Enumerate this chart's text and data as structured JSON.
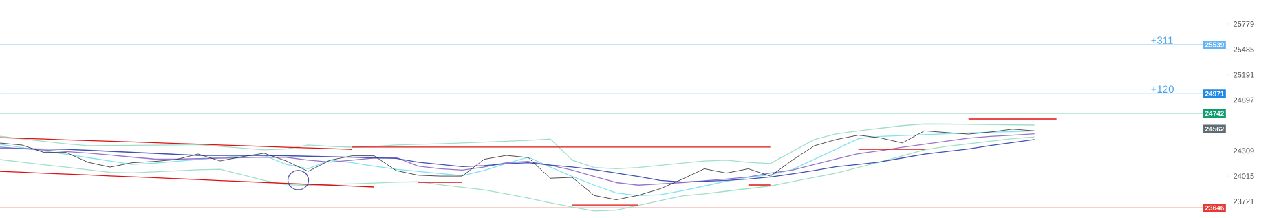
{
  "chart_data": {
    "type": "line",
    "categories": [
      null,
      null,
      null,
      null,
      null,
      null,
      null,
      null,
      null,
      null,
      null,
      null,
      null,
      null,
      null,
      null,
      null,
      null,
      null,
      null,
      null,
      null,
      null,
      null,
      null,
      null,
      null,
      null,
      null,
      null,
      null,
      null,
      null,
      null,
      null,
      null,
      null,
      null,
      null,
      null,
      null,
      null,
      null,
      null,
      null,
      null,
      null,
      null,
      null,
      null,
      null,
      null,
      null,
      null,
      null,
      null
    ],
    "ylim": [
      23529,
      26058
    ],
    "yticks": [
      23721,
      24015,
      24309,
      24897,
      25191,
      25485,
      25779
    ],
    "series": [
      {
        "color": "#9fdfca",
        "values": [
          24478,
          24448,
          24418,
          24389,
          24368,
          24370,
          24372,
          24374,
          24376,
          24380,
          24360,
          24340,
          24320,
          24330,
          24375,
          24360,
          24350,
          24360,
          24375,
          24383,
          24390,
          24400,
          24410,
          24420,
          24430,
          24446,
          24200,
          24115,
          24100,
          24115,
          24140,
          24165,
          24190,
          24200,
          24175,
          24160,
          24300,
          24440,
          24505,
          24540,
          24570,
          24600,
          24620,
          24618,
          24615,
          24612,
          24609,
          24606,
          null,
          null,
          null,
          null,
          null,
          null,
          null,
          null
        ]
      },
      {
        "color": "#9fdfca",
        "values": [
          24207,
          24177,
          24147,
          24118,
          24088,
          24058,
          24053,
          24065,
          24077,
          24088,
          24094,
          24030,
          23965,
          23915,
          23908,
          23920,
          23925,
          23935,
          23945,
          23950,
          23915,
          23885,
          23855,
          23810,
          23760,
          23705,
          23655,
          23610,
          23620,
          23675,
          23730,
          23785,
          23810,
          23840,
          23870,
          23900,
          23950,
          24000,
          24050,
          24115,
          24180,
          24250,
          24320,
          24360,
          24390,
          24420,
          24450,
          24470,
          null,
          null,
          null,
          null,
          null,
          null,
          null,
          null
        ]
      },
      {
        "color": "#7fe3f0",
        "values": [
          24383,
          24345,
          24306,
          24268,
          24229,
          24191,
          24150,
          24164,
          24186,
          24208,
          24230,
          24250,
          24255,
          24150,
          24100,
          24200,
          24170,
          24130,
          24095,
          24070,
          24045,
          24020,
          24080,
          24160,
          24235,
          24120,
          24010,
          23910,
          23820,
          23790,
          23800,
          23845,
          23900,
          23955,
          24000,
          24030,
          24090,
          24210,
          24330,
          24450,
          24475,
          24485,
          24495,
          24505,
          24515,
          24525,
          24530,
          24540,
          null,
          null,
          null,
          null,
          null,
          null,
          null,
          null
        ]
      },
      {
        "color": "#9575cd",
        "values": [
          24351,
          24334,
          24317,
          24300,
          24282,
          24260,
          24235,
          24213,
          24211,
          24217,
          24223,
          24229,
          24235,
          24233,
          24200,
          24178,
          24200,
          24225,
          24230,
          24130,
          24100,
          24085,
          24120,
          24170,
          24185,
          24140,
          24085,
          24010,
          23940,
          23910,
          23925,
          23940,
          23960,
          23980,
          24005,
          24050,
          24085,
          24150,
          24215,
          24275,
          24310,
          24350,
          24385,
          24420,
          24455,
          24475,
          24490,
          24505,
          null,
          null,
          null,
          null,
          null,
          null,
          null,
          null
        ]
      },
      {
        "color": "#3f51b5",
        "values": [
          24335,
          24333,
          24330,
          24326,
          24315,
          24303,
          24291,
          24279,
          24267,
          24255,
          24255,
          24255,
          24255,
          24251,
          24245,
          24239,
          24233,
          24227,
          24220,
          24177,
          24151,
          24125,
          24136,
          24158,
          24170,
          24143,
          24120,
          24090,
          24050,
          24010,
          23965,
          23947,
          23955,
          23965,
          23980,
          24005,
          24040,
          24080,
          24125,
          24150,
          24180,
          24225,
          24270,
          24300,
          24330,
          24370,
          24405,
          24440,
          null,
          null,
          null,
          null,
          null,
          null,
          null,
          null
        ]
      },
      {
        "color": "#222222",
        "values": [
          24398,
          24375,
          24290,
          24290,
          24175,
          24119,
          24170,
          24185,
          24207,
          24271,
          24191,
          24240,
          24280,
          24191,
          24070,
          24200,
          24250,
          24250,
          24079,
          24025,
          24015,
          24015,
          24210,
          24255,
          24230,
          23990,
          24000,
          23790,
          23740,
          23792,
          23868,
          23980,
          24100,
          24050,
          24100,
          24015,
          24200,
          24367,
          24440,
          24490,
          24458,
          24400,
          24540,
          24520,
          24502,
          24526,
          24560,
          24540,
          null,
          null,
          null,
          null,
          null,
          null,
          null,
          null
        ]
      },
      {
        "color": "#e01010",
        "values": [
          24462,
          24453,
          24445,
          24436,
          24428,
          24419,
          24411,
          24402,
          24393,
          24385,
          24376,
          24368,
          24359,
          24350,
          24342,
          24333,
          24325,
          null,
          null,
          null,
          null,
          null,
          null,
          null,
          null,
          null,
          null,
          null,
          null,
          null,
          null,
          null,
          null,
          null,
          null,
          null,
          null,
          null,
          null,
          null,
          null,
          null,
          null,
          null,
          null,
          null,
          null,
          null,
          null,
          null,
          null,
          null,
          null,
          null,
          null,
          null
        ]
      },
      {
        "color": "#e01010",
        "values": [
          24071,
          24060,
          24049,
          24039,
          24028,
          24017,
          24006,
          23996,
          23985,
          23974,
          23963,
          23953,
          23942,
          23931,
          23920,
          23910,
          23899,
          23888,
          null,
          null,
          null,
          null,
          null,
          null,
          null,
          null,
          null,
          null,
          null,
          null,
          null,
          null,
          null,
          null,
          null,
          null,
          null,
          null,
          null,
          null,
          null,
          null,
          null,
          null,
          null,
          null,
          null,
          null,
          null,
          null,
          null,
          null,
          null,
          null,
          null,
          null
        ]
      },
      {
        "color": "#e01010",
        "values": [
          null,
          null,
          null,
          null,
          null,
          null,
          null,
          null,
          null,
          null,
          null,
          null,
          null,
          null,
          null,
          null,
          24351,
          24351,
          24351,
          24351,
          24351,
          24351,
          24351,
          24351,
          24351,
          24351,
          24351,
          24351,
          24351,
          24351,
          24351,
          24351,
          24351,
          24351,
          24351,
          24351,
          null,
          null,
          null,
          null,
          null,
          null,
          null,
          null,
          null,
          null,
          null,
          null,
          null,
          null,
          null,
          null,
          null,
          null,
          null,
          null
        ]
      },
      {
        "color": "#e01010",
        "values": [
          null,
          null,
          null,
          null,
          null,
          null,
          null,
          null,
          null,
          null,
          null,
          null,
          null,
          null,
          null,
          null,
          null,
          null,
          null,
          23944,
          23944,
          23944,
          null,
          null,
          null,
          null,
          null,
          null,
          null,
          null,
          null,
          null,
          null,
          null,
          null,
          null,
          null,
          null,
          null,
          null,
          null,
          null,
          null,
          null,
          null,
          null,
          null,
          null,
          null,
          null,
          null,
          null,
          null,
          null,
          null,
          null
        ]
      },
      {
        "color": "#e01010",
        "values": [
          null,
          null,
          null,
          null,
          null,
          null,
          null,
          null,
          null,
          null,
          null,
          null,
          null,
          null,
          null,
          null,
          null,
          null,
          null,
          null,
          null,
          null,
          null,
          null,
          null,
          null,
          23680,
          23680,
          23680,
          23680,
          null,
          null,
          null,
          null,
          null,
          null,
          null,
          null,
          null,
          null,
          null,
          null,
          null,
          null,
          null,
          null,
          null,
          null,
          null,
          null,
          null,
          null,
          null,
          null,
          null,
          null
        ]
      },
      {
        "color": "#e01010",
        "values": [
          null,
          null,
          null,
          null,
          null,
          null,
          null,
          null,
          null,
          null,
          null,
          null,
          null,
          null,
          null,
          null,
          null,
          null,
          null,
          null,
          null,
          null,
          null,
          null,
          null,
          null,
          null,
          null,
          null,
          null,
          null,
          null,
          null,
          null,
          23912,
          23912,
          null,
          null,
          null,
          null,
          null,
          null,
          null,
          null,
          null,
          null,
          null,
          null,
          null,
          null,
          null,
          null,
          null,
          null,
          null,
          null
        ]
      },
      {
        "color": "#e01010",
        "values": [
          null,
          null,
          null,
          null,
          null,
          null,
          null,
          null,
          null,
          null,
          null,
          null,
          null,
          null,
          null,
          null,
          null,
          null,
          null,
          null,
          null,
          null,
          null,
          null,
          null,
          null,
          null,
          null,
          null,
          null,
          null,
          null,
          null,
          null,
          null,
          null,
          null,
          null,
          null,
          24327,
          24327,
          24327,
          24327,
          null,
          null,
          null,
          null,
          null,
          null,
          null,
          null,
          null,
          null,
          null,
          null,
          null
        ]
      },
      {
        "color": "#e01010",
        "values": [
          null,
          null,
          null,
          null,
          null,
          null,
          null,
          null,
          null,
          null,
          null,
          null,
          null,
          null,
          null,
          null,
          null,
          null,
          null,
          null,
          null,
          null,
          null,
          null,
          null,
          null,
          null,
          null,
          null,
          null,
          null,
          null,
          null,
          null,
          null,
          null,
          null,
          null,
          null,
          null,
          null,
          null,
          null,
          null,
          24678,
          24678,
          24678,
          24678,
          24678,
          null,
          null,
          null,
          null,
          null,
          null,
          null
        ]
      }
    ],
    "ref_lines": [
      {
        "axis": "y",
        "value": 25539,
        "label": "25539",
        "color": "#64b5f6"
      },
      {
        "axis": "y",
        "value": 24971,
        "label": "24971",
        "color": "#1e88e5"
      },
      {
        "axis": "y",
        "value": 24742,
        "label": "24742",
        "color": "#0f9d6e"
      },
      {
        "axis": "y",
        "value": 24562,
        "label": "24562",
        "color": "#5f6b73"
      },
      {
        "axis": "y",
        "value": 23646,
        "label": "23646",
        "color": "#e53935"
      }
    ],
    "annotations": [
      {
        "text": "+311",
        "y": 25539
      },
      {
        "text": "+120",
        "y": 24971
      }
    ]
  }
}
